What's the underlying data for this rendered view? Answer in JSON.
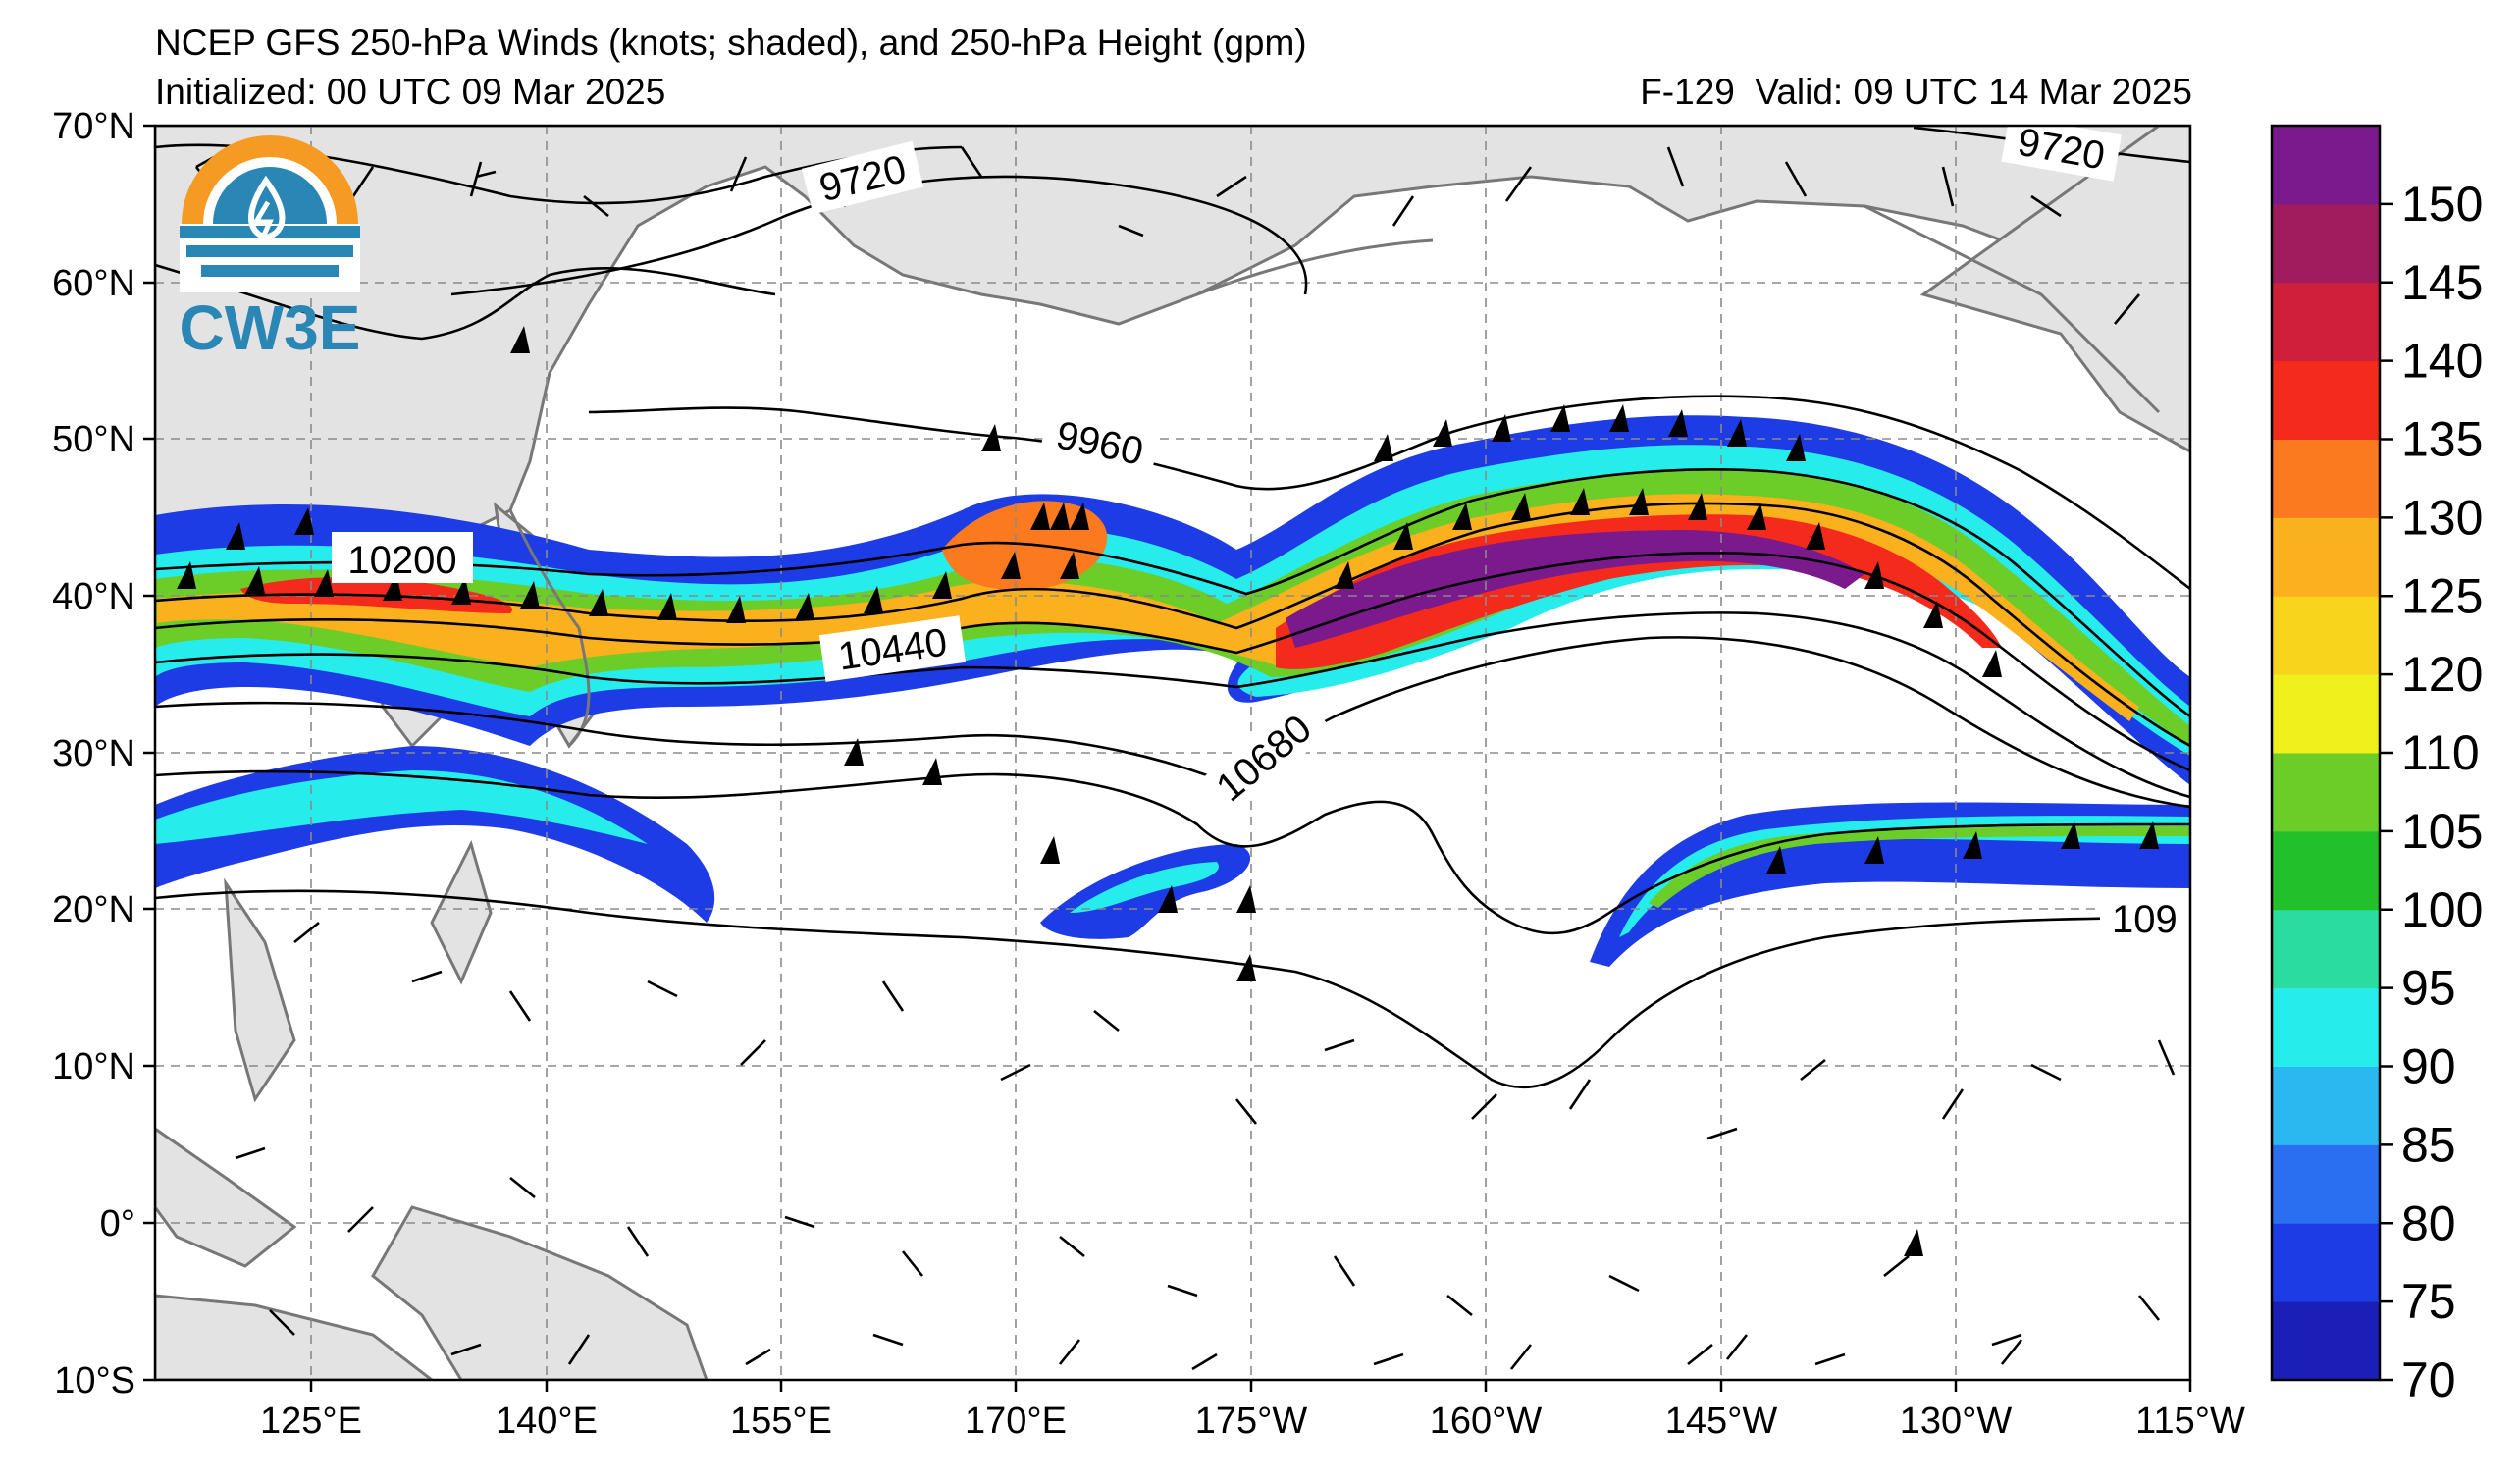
{
  "header": {
    "title": "NCEP GFS 250-hPa Winds (knots; shaded), and 250-hPa Height (gpm)",
    "initialized": "Initialized: 00 UTC 09 Mar 2025",
    "forecast": "F-129",
    "valid": "Valid: 09 UTC 14 Mar 2025"
  },
  "logo": {
    "text": "CW3E",
    "colors": {
      "sun": "#f59a23",
      "water": "#2a86b5"
    }
  },
  "axes": {
    "lat_labels": [
      "70°N",
      "60°N",
      "50°N",
      "40°N",
      "30°N",
      "20°N",
      "10°N",
      "0°",
      "10°S"
    ],
    "lon_labels": [
      "125°E",
      "140°E",
      "155°E",
      "170°E",
      "175°W",
      "160°W",
      "145°W",
      "130°W",
      "115°W"
    ],
    "lat_range": [
      -10,
      70
    ],
    "lon_range": [
      115,
      245
    ],
    "grid": true
  },
  "colorbar": {
    "ticks": [
      "70",
      "75",
      "80",
      "85",
      "90",
      "95",
      "100",
      "105",
      "110",
      "120",
      "125",
      "130",
      "135",
      "140",
      "145",
      "150"
    ],
    "colors": [
      "#1b1fb8",
      "#1e3ce6",
      "#2a6ff2",
      "#2bb8f0",
      "#27ecec",
      "#2bdca0",
      "#22c02a",
      "#6ccd28",
      "#f0f01c",
      "#f8d41c",
      "#fbb01d",
      "#fb7a1f",
      "#f42a1c",
      "#cf1f3a",
      "#a11c5e",
      "#7a1a8c"
    ],
    "units": "knots"
  },
  "contours": {
    "labels": [
      "9720",
      "9720",
      "9960",
      "10200",
      "10440",
      "10680",
      "109"
    ]
  },
  "colors": {
    "land": "#e3e3e3",
    "coast": "#777777",
    "grid": "#8a8a8a"
  }
}
